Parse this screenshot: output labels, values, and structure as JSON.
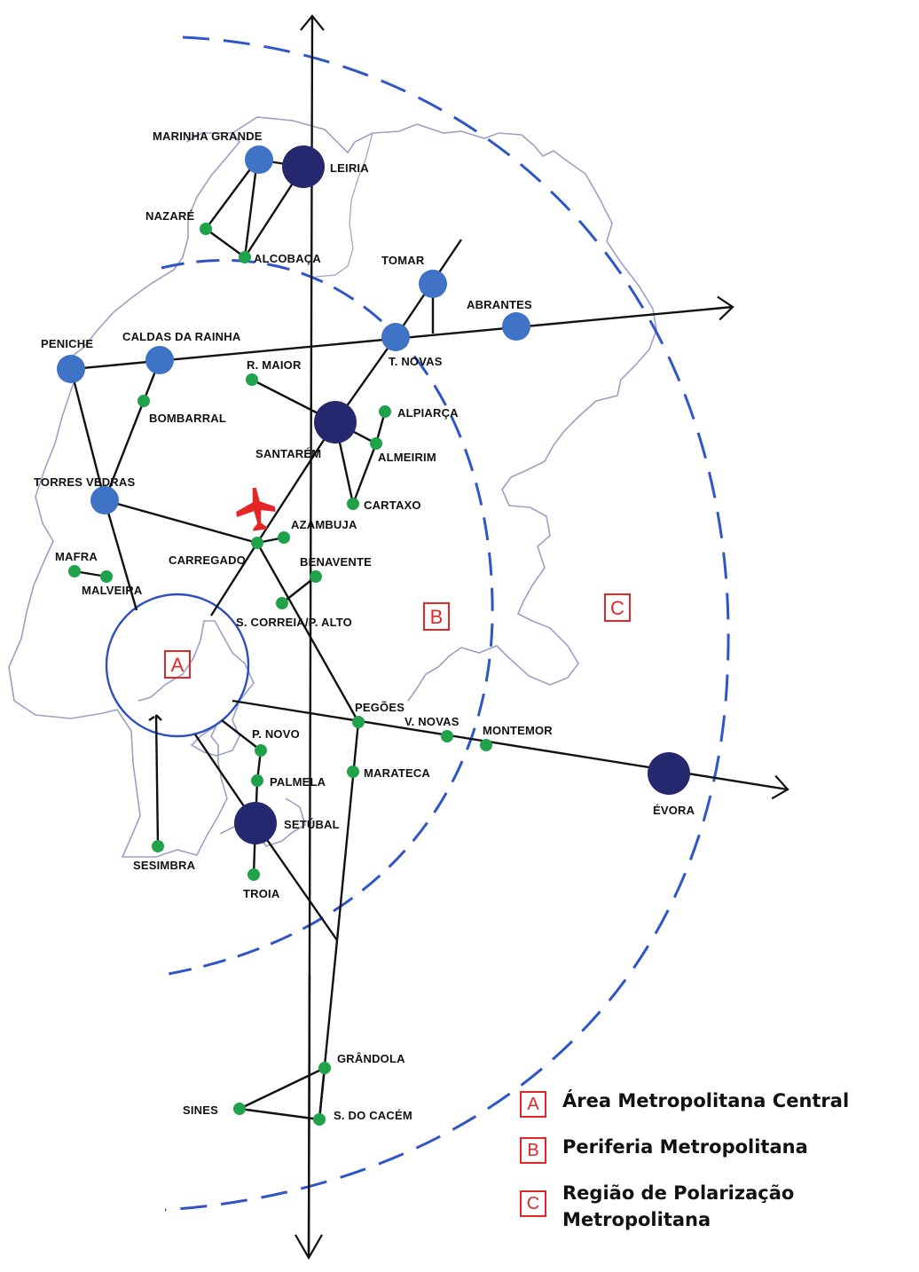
{
  "colors": {
    "coast": "#9aa0c6",
    "ring": "#2f4fc0",
    "dash": "#2f56c8",
    "major_city": "#26286f",
    "mid_city": "#3e73c6",
    "minor_city": "#1fa34a",
    "zone_marker": "#e32626",
    "road": "#111111"
  },
  "icons": {
    "airport": "airplane-icon",
    "arrow": "arrow-head-icon"
  },
  "cities": [
    {
      "id": "marinha-grande",
      "name": "MARINHA GRANDE",
      "level": "mid"
    },
    {
      "id": "leiria",
      "name": "LEIRIA",
      "level": "major"
    },
    {
      "id": "nazare",
      "name": "NAZARÉ",
      "level": "minor"
    },
    {
      "id": "alcobaca",
      "name": "ALCOBAÇA",
      "level": "minor"
    },
    {
      "id": "tomar",
      "name": "TOMAR",
      "level": "mid"
    },
    {
      "id": "abrantes",
      "name": "ABRANTES",
      "level": "mid"
    },
    {
      "id": "peniche",
      "name": "PENICHE",
      "level": "mid"
    },
    {
      "id": "caldas-da-rainha",
      "name": "CALDAS DA RAINHA",
      "level": "mid"
    },
    {
      "id": "t-novas",
      "name": "T. NOVAS",
      "level": "mid"
    },
    {
      "id": "r-maior",
      "name": "R. MAIOR",
      "level": "minor"
    },
    {
      "id": "bombarral",
      "name": "BOMBARRAL",
      "level": "minor"
    },
    {
      "id": "santarem",
      "name": "SANTARÉM",
      "level": "major"
    },
    {
      "id": "alpiarca",
      "name": "ALPIARÇA",
      "level": "minor"
    },
    {
      "id": "almeirim",
      "name": "ALMEIRIM",
      "level": "minor"
    },
    {
      "id": "torres-vedras",
      "name": "TORRES VEDRAS",
      "level": "mid"
    },
    {
      "id": "cartaxo",
      "name": "CARTAXO",
      "level": "minor"
    },
    {
      "id": "azambuja",
      "name": "AZAMBUJA",
      "level": "minor"
    },
    {
      "id": "carregado",
      "name": "CARREGADO",
      "level": "minor"
    },
    {
      "id": "benavente",
      "name": "BENAVENTE",
      "level": "minor"
    },
    {
      "id": "mafra",
      "name": "MAFRA",
      "level": "minor"
    },
    {
      "id": "malveira",
      "name": "MALVEIRA",
      "level": "minor"
    },
    {
      "id": "s-correia-p-alto",
      "name": "S. CORREIA/P. ALTO",
      "level": "minor"
    },
    {
      "id": "pegoes",
      "name": "PEGÕES",
      "level": "minor"
    },
    {
      "id": "v-novas",
      "name": "V. NOVAS",
      "level": "minor"
    },
    {
      "id": "montemor",
      "name": "MONTEMOR",
      "level": "minor"
    },
    {
      "id": "p-novo",
      "name": "P. NOVO",
      "level": "minor"
    },
    {
      "id": "palmela",
      "name": "PALMELA",
      "level": "minor"
    },
    {
      "id": "marateca",
      "name": "MARATECA",
      "level": "minor"
    },
    {
      "id": "evora",
      "name": "ÉVORA",
      "level": "major"
    },
    {
      "id": "setubal",
      "name": "SETÚBAL",
      "level": "major"
    },
    {
      "id": "sesimbra",
      "name": "SESIMBRA",
      "level": "minor"
    },
    {
      "id": "troia",
      "name": "TROIA",
      "level": "minor"
    },
    {
      "id": "grandola",
      "name": "GRÂNDOLA",
      "level": "minor"
    },
    {
      "id": "sines",
      "name": "SINES",
      "level": "minor"
    },
    {
      "id": "s-do-cacem",
      "name": "S. DO CACÉM",
      "level": "minor"
    }
  ],
  "zone_markers": {
    "a": "A",
    "b": "B",
    "c": "C"
  },
  "legend": [
    {
      "key": "A",
      "text": "Área Metropolitana Central"
    },
    {
      "key": "B",
      "text": "Periferia Metropolitana"
    },
    {
      "key": "C",
      "text": "Região de Polarização Metropolitana"
    }
  ]
}
